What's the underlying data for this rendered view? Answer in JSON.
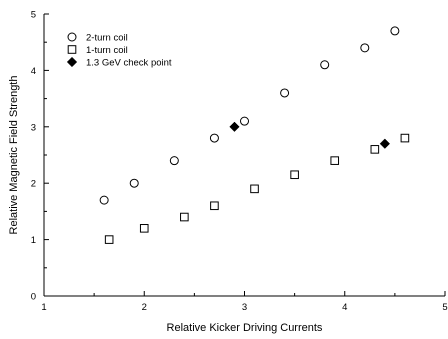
{
  "chart_data": {
    "type": "scatter",
    "title": "",
    "xlabel": "Relative Kicker Driving Currents",
    "ylabel": "Relative Magnetic Field Strength",
    "xlim": [
      1,
      5
    ],
    "ylim": [
      0,
      5
    ],
    "xticks": [
      "1",
      "2",
      "3",
      "4",
      "5"
    ],
    "yticks": [
      "0",
      "1",
      "2",
      "3",
      "4",
      "5"
    ],
    "grid": false,
    "legend_position": "top-left",
    "series": [
      {
        "name": "2-turn coil",
        "marker": "open-circle",
        "color": "#000000",
        "points": [
          [
            1.6,
            1.7
          ],
          [
            1.9,
            2.0
          ],
          [
            2.3,
            2.4
          ],
          [
            2.7,
            2.8
          ],
          [
            3.0,
            3.1
          ],
          [
            3.4,
            3.6
          ],
          [
            3.8,
            4.1
          ],
          [
            4.2,
            4.4
          ],
          [
            4.5,
            4.7
          ]
        ]
      },
      {
        "name": "1-turn coil",
        "marker": "open-square",
        "color": "#000000",
        "points": [
          [
            1.65,
            1.0
          ],
          [
            2.0,
            1.2
          ],
          [
            2.4,
            1.4
          ],
          [
            2.7,
            1.6
          ],
          [
            3.1,
            1.9
          ],
          [
            3.5,
            2.15
          ],
          [
            3.9,
            2.4
          ],
          [
            4.3,
            2.6
          ],
          [
            4.6,
            2.8
          ]
        ]
      },
      {
        "name": "1.3 GeV check point",
        "marker": "filled-diamond",
        "color": "#000000",
        "points": [
          [
            2.9,
            3.0
          ],
          [
            4.4,
            2.7
          ]
        ]
      }
    ]
  }
}
